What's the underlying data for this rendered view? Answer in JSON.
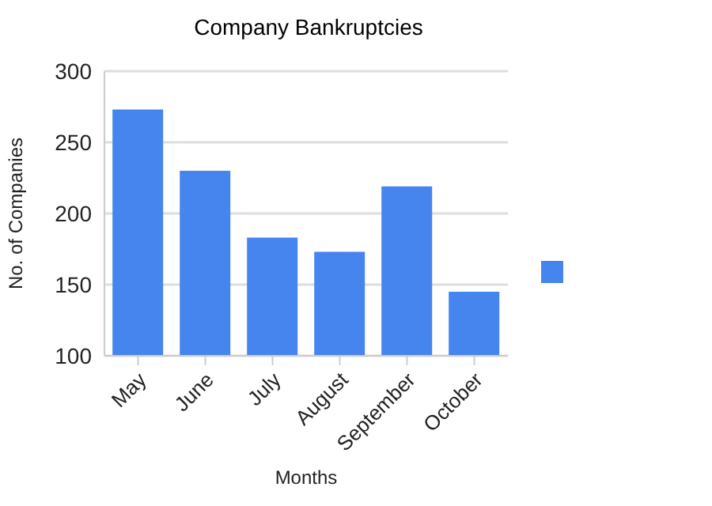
{
  "chart_data": {
    "type": "bar",
    "title": "Company Bankruptcies",
    "xlabel": "Months",
    "ylabel": "No. of Companies",
    "categories": [
      "May",
      "June",
      "July",
      "August",
      "September",
      "October"
    ],
    "series": [
      {
        "color": "#4684ee",
        "values": [
          273,
          230,
          183,
          173,
          219,
          145
        ]
      }
    ],
    "ylim": [
      100,
      300
    ],
    "yticks": [
      100,
      150,
      200,
      250,
      300
    ],
    "grid": "y"
  }
}
